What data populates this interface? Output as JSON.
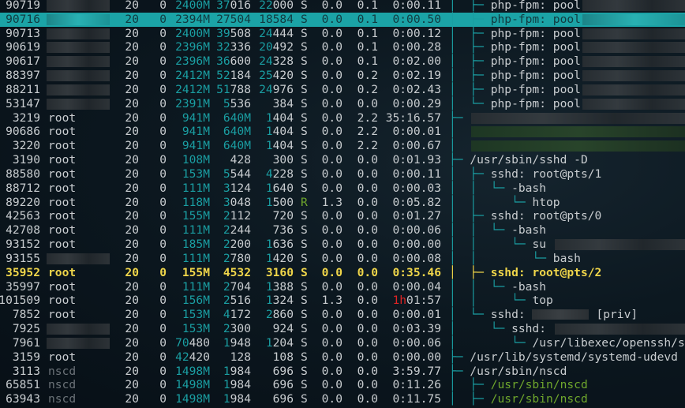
{
  "colors": {
    "accent": "#1a9ea2",
    "selected_bg": "#1ba3a6",
    "highlight": "#f0d64a",
    "running": "#6fa72c",
    "alert": "#e02424"
  },
  "processes": [
    {
      "pid": "90719",
      "user": null,
      "pri": "20",
      "ni": "0",
      "virt": "2400M",
      "res": "37016",
      "shr": "22000",
      "s": "S",
      "cpu": "0.0",
      "mem": "0.1",
      "time": "0:00.11",
      "tree": "│  ├─ ",
      "command": "php-fpm: pool",
      "cmd_blur": true
    },
    {
      "pid": "90716",
      "user": null,
      "pri": "20",
      "ni": "0",
      "virt": "2394M",
      "res": "27504",
      "shr": "18584",
      "s": "S",
      "cpu": "0.0",
      "mem": "0.1",
      "time": "0:00.50",
      "tree": "│  ├─ ",
      "command": "php-fpm: pool",
      "cmd_blur": true,
      "selected": true
    },
    {
      "pid": "90713",
      "user": null,
      "pri": "20",
      "ni": "0",
      "virt": "2400M",
      "res": "39508",
      "shr": "24444",
      "s": "S",
      "cpu": "0.0",
      "mem": "0.1",
      "time": "0:00.12",
      "tree": "│  ├─ ",
      "command": "php-fpm: pool",
      "cmd_blur": true
    },
    {
      "pid": "90619",
      "user": null,
      "pri": "20",
      "ni": "0",
      "virt": "2396M",
      "res": "32336",
      "shr": "20492",
      "s": "S",
      "cpu": "0.0",
      "mem": "0.1",
      "time": "0:00.28",
      "tree": "│  ├─ ",
      "command": "php-fpm: pool",
      "cmd_blur": true
    },
    {
      "pid": "90617",
      "user": null,
      "pri": "20",
      "ni": "0",
      "virt": "2396M",
      "res": "36600",
      "shr": "24328",
      "s": "S",
      "cpu": "0.0",
      "mem": "0.1",
      "time": "0:02.00",
      "tree": "│  ├─ ",
      "command": "php-fpm: pool",
      "cmd_blur": true
    },
    {
      "pid": "88397",
      "user": null,
      "pri": "20",
      "ni": "0",
      "virt": "2412M",
      "res": "52184",
      "shr": "25420",
      "s": "S",
      "cpu": "0.0",
      "mem": "0.2",
      "time": "0:02.19",
      "tree": "│  ├─ ",
      "command": "php-fpm: pool",
      "cmd_blur": true
    },
    {
      "pid": "88211",
      "user": null,
      "pri": "20",
      "ni": "0",
      "virt": "2412M",
      "res": "51788",
      "shr": "24976",
      "s": "S",
      "cpu": "0.0",
      "mem": "0.2",
      "time": "0:02.43",
      "tree": "│  ├─ ",
      "command": "php-fpm: pool",
      "cmd_blur": true
    },
    {
      "pid": "53147",
      "user": null,
      "pri": "20",
      "ni": "0",
      "virt": "2391M",
      "res": "5536",
      "shr": "384",
      "s": "S",
      "cpu": "0.0",
      "mem": "0.0",
      "time": "0:00.29",
      "tree": "│  └─ ",
      "command": "php-fpm: pool",
      "cmd_blur": true
    },
    {
      "pid": "3219",
      "user": "root",
      "pri": "20",
      "ni": "0",
      "virt": "941M",
      "res": "640M",
      "shr": "1404",
      "s": "S",
      "cpu": "0.0",
      "mem": "2.2",
      "time": "35:16.57",
      "tree": "├─ ",
      "command": "",
      "cmd_blur": true
    },
    {
      "pid": "90686",
      "user": "root",
      "pri": "20",
      "ni": "0",
      "virt": "941M",
      "res": "640M",
      "shr": "1404",
      "s": "S",
      "cpu": "0.0",
      "mem": "2.2",
      "time": "0:00.01",
      "tree": "│  ",
      "command": "",
      "cmd_blur": true,
      "green_blur": true
    },
    {
      "pid": "3220",
      "user": "root",
      "pri": "20",
      "ni": "0",
      "virt": "941M",
      "res": "640M",
      "shr": "1404",
      "s": "S",
      "cpu": "0.0",
      "mem": "2.2",
      "time": "0:00.67",
      "tree": "│  ",
      "command": "",
      "cmd_blur": true,
      "green_blur": true
    },
    {
      "pid": "3190",
      "user": "root",
      "pri": "20",
      "ni": "0",
      "virt": "108M",
      "res": "428",
      "shr": "300",
      "s": "S",
      "cpu": "0.0",
      "mem": "0.0",
      "time": "0:01.93",
      "tree": "├─ ",
      "command": "/usr/sbin/sshd -D"
    },
    {
      "pid": "88580",
      "user": "root",
      "pri": "20",
      "ni": "0",
      "virt": "153M",
      "res": "5544",
      "shr": "4228",
      "s": "S",
      "cpu": "0.0",
      "mem": "0.0",
      "time": "0:00.11",
      "tree": "│  ├─ ",
      "command": "sshd: root@pts/1"
    },
    {
      "pid": "88712",
      "user": "root",
      "pri": "20",
      "ni": "0",
      "virt": "111M",
      "res": "3124",
      "shr": "1640",
      "s": "S",
      "cpu": "0.0",
      "mem": "0.0",
      "time": "0:00.03",
      "tree": "│  │  └─ ",
      "command": "-bash"
    },
    {
      "pid": "89220",
      "user": "root",
      "pri": "20",
      "ni": "0",
      "virt": "118M",
      "res": "3048",
      "shr": "1500",
      "s": "R",
      "cpu": "1.3",
      "mem": "0.0",
      "time": "0:05.82",
      "tree": "│  │     └─ ",
      "command": "htop"
    },
    {
      "pid": "42563",
      "user": "root",
      "pri": "20",
      "ni": "0",
      "virt": "155M",
      "res": "2112",
      "shr": "720",
      "s": "S",
      "cpu": "0.0",
      "mem": "0.0",
      "time": "0:01.27",
      "tree": "│  ├─ ",
      "command": "sshd: root@pts/0"
    },
    {
      "pid": "42708",
      "user": "root",
      "pri": "20",
      "ni": "0",
      "virt": "111M",
      "res": "2244",
      "shr": "736",
      "s": "S",
      "cpu": "0.0",
      "mem": "0.0",
      "time": "0:00.06",
      "tree": "│  │  └─ ",
      "command": "-bash"
    },
    {
      "pid": "93152",
      "user": "root",
      "pri": "20",
      "ni": "0",
      "virt": "185M",
      "res": "2200",
      "shr": "1636",
      "s": "S",
      "cpu": "0.0",
      "mem": "0.0",
      "time": "0:00.00",
      "tree": "│  │     └─ ",
      "command": "su ",
      "cmd_blur": true
    },
    {
      "pid": "93155",
      "user": null,
      "pri": "20",
      "ni": "0",
      "virt": "111M",
      "res": "2780",
      "shr": "1420",
      "s": "S",
      "cpu": "0.0",
      "mem": "0.0",
      "time": "0:00.08",
      "tree": "│  │        └─ ",
      "command": "bash"
    },
    {
      "pid": "35952",
      "user": "root",
      "pri": "20",
      "ni": "0",
      "virt": "155M",
      "res": "4532",
      "shr": "3160",
      "s": "S",
      "cpu": "0.0",
      "mem": "0.0",
      "time": "0:35.46",
      "tree": "│  ├─ ",
      "command": "sshd: root@pts/2",
      "highlight": true
    },
    {
      "pid": "35997",
      "user": "root",
      "pri": "20",
      "ni": "0",
      "virt": "111M",
      "res": "2704",
      "shr": "1388",
      "s": "S",
      "cpu": "0.0",
      "mem": "0.0",
      "time": "0:00.04",
      "tree": "│  │  └─ ",
      "command": "-bash"
    },
    {
      "pid": "101509",
      "user": "root",
      "pri": "20",
      "ni": "0",
      "virt": "156M",
      "res": "2516",
      "shr": "1324",
      "s": "S",
      "cpu": "1.3",
      "mem": "0.0",
      "time": "1h01:57",
      "tree": "│  │     └─ ",
      "command": "top"
    },
    {
      "pid": "7852",
      "user": "root",
      "pri": "20",
      "ni": "0",
      "virt": "153M",
      "res": "4172",
      "shr": "2860",
      "s": "S",
      "cpu": "0.0",
      "mem": "0.0",
      "time": "0:00.01",
      "tree": "│  └─ ",
      "command": "sshd: ",
      "cmd_blur_mid": true,
      "command_suffix": "[priv]"
    },
    {
      "pid": "7925",
      "user": null,
      "pri": "20",
      "ni": "0",
      "virt": "153M",
      "res": "2300",
      "shr": "924",
      "s": "S",
      "cpu": "0.0",
      "mem": "0.0",
      "time": "0:03.39",
      "tree": "│     └─ ",
      "command": "sshd: ",
      "cmd_blur": true
    },
    {
      "pid": "7961",
      "user": null,
      "pri": "20",
      "ni": "0",
      "virt": "70480",
      "res": "1948",
      "shr": "1204",
      "s": "S",
      "cpu": "0.0",
      "mem": "0.0",
      "time": "0:00.06",
      "tree": "│        └─ ",
      "command": "/usr/libexec/openssh/s"
    },
    {
      "pid": "3159",
      "user": "root",
      "pri": "20",
      "ni": "0",
      "virt": "42420",
      "res": "128",
      "shr": "108",
      "s": "S",
      "cpu": "0.0",
      "mem": "0.0",
      "time": "0:00.00",
      "tree": "├─ ",
      "command": "/usr/lib/systemd/systemd-udevd"
    },
    {
      "pid": "3113",
      "user": "nscd",
      "pri": "20",
      "ni": "0",
      "virt": "1498M",
      "res": "1984",
      "shr": "696",
      "s": "S",
      "cpu": "0.0",
      "mem": "0.0",
      "time": "3:59.77",
      "tree": "├─ ",
      "command": "/usr/sbin/nscd"
    },
    {
      "pid": "65851",
      "user": "nscd",
      "pri": "20",
      "ni": "0",
      "virt": "1498M",
      "res": "1984",
      "shr": "696",
      "s": "S",
      "cpu": "0.0",
      "mem": "0.0",
      "time": "0:11.26",
      "tree": "│  ├─ ",
      "command": "/usr/sbin/nscd",
      "thread": true
    },
    {
      "pid": "63943",
      "user": "nscd",
      "pri": "20",
      "ni": "0",
      "virt": "1498M",
      "res": "1984",
      "shr": "696",
      "s": "S",
      "cpu": "0.0",
      "mem": "0.0",
      "time": "0:11.75",
      "tree": "│  ├─ ",
      "command": "/usr/sbin/nscd",
      "thread": true
    }
  ]
}
